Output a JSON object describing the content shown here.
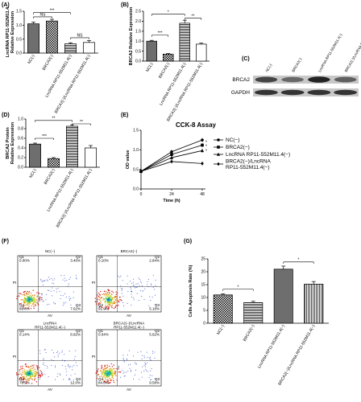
{
  "patterns": {
    "dark": "#7f7f7f",
    "check": "#000000",
    "hstripe": "#000000",
    "gray_light": "#d9d9d9"
  },
  "chart_data": [
    {
      "panel": "(A)",
      "type": "bar",
      "ylabel": "LncRNA RP11-552M11.4\nRelative Expression",
      "ylim": [
        0,
        1.5
      ],
      "yticks": [
        "0.0",
        "0.5",
        "1.0",
        "1.5"
      ],
      "categories": [
        "NC(-)",
        "BRCA2(-)",
        "LncRNA RP11-552M11.4(-)",
        "BRCA2(-)/LncRNA RP11-552M11.4(-)"
      ],
      "values": [
        1.05,
        1.15,
        0.33,
        0.38
      ],
      "errors": [
        0.06,
        0.06,
        0.04,
        0.07
      ],
      "fills": [
        "dark",
        "check",
        "hstripe",
        "white"
      ],
      "significance": [
        {
          "from": 0,
          "to": 1,
          "label": "NS",
          "level": 1.3
        },
        {
          "from": 0,
          "to": 2,
          "label": "***",
          "level": 1.45
        },
        {
          "from": 2,
          "to": 3,
          "label": "NS",
          "level": 0.55
        }
      ]
    },
    {
      "panel": "(B)",
      "type": "bar",
      "ylabel": "BRCA2 Relative Expression",
      "ylim": [
        0,
        2.5
      ],
      "yticks": [
        "0.0",
        "0.5",
        "1.0",
        "1.5",
        "2.0",
        "2.5"
      ],
      "categories": [
        "NC(-)",
        "BRCA2(-)",
        "LncRNA RP11-552M11.4(-)",
        "BRCA2(-)/LncRNA RP11-552M11.4(-)"
      ],
      "values": [
        1.0,
        0.35,
        1.9,
        0.85
      ],
      "errors": [
        0.04,
        0.03,
        0.15,
        0.05
      ],
      "fills": [
        "dark",
        "check",
        "hstripe",
        "white"
      ],
      "significance": [
        {
          "from": 0,
          "to": 1,
          "label": "***",
          "level": 1.3
        },
        {
          "from": 0,
          "to": 2,
          "label": "*",
          "level": 2.35
        },
        {
          "from": 2,
          "to": 3,
          "label": "**",
          "level": 2.15
        }
      ]
    },
    {
      "panel": "(D)",
      "type": "bar",
      "ylabel": "BRCA2 Protein\nRelative Expression",
      "ylim": [
        0,
        1.0
      ],
      "yticks": [
        "0.0",
        "0.2",
        "0.4",
        "0.6",
        "0.8",
        "1.0"
      ],
      "categories": [
        "NC(-)",
        "BRCA2(-)",
        "LncRNA RP11-552M11.4(-)",
        "BRCA2(-)/LncRNA RP11-552M11.4(-)"
      ],
      "values": [
        0.48,
        0.18,
        0.85,
        0.4
      ],
      "errors": [
        0.02,
        0.02,
        0.03,
        0.05
      ],
      "fills": [
        "dark",
        "check",
        "hstripe",
        "white"
      ],
      "significance": [
        {
          "from": 0,
          "to": 1,
          "label": "***",
          "level": 0.6
        },
        {
          "from": 0,
          "to": 2,
          "label": "**",
          "level": 0.97
        },
        {
          "from": 2,
          "to": 3,
          "label": "**",
          "level": 0.9
        }
      ]
    },
    {
      "panel": "(E)",
      "type": "line",
      "title": "CCK-8 Assay",
      "xlabel": "Time  (h)",
      "ylabel": "OD value",
      "x": [
        0,
        24,
        48
      ],
      "xticks": [
        "0",
        "24",
        "48"
      ],
      "ylim": [
        0,
        1.5
      ],
      "yticks": [
        "0.0",
        "0.5",
        "1.0",
        "1.5"
      ],
      "series": [
        {
          "name": "NC(−)",
          "values": [
            0.45,
            0.95,
            1.25
          ],
          "marker": "circle"
        },
        {
          "name": "BRCA2(−)",
          "values": [
            0.45,
            0.88,
            1.12
          ],
          "marker": "square"
        },
        {
          "name": "LncRNA RP11-552M11.4(−)",
          "values": [
            0.45,
            0.8,
            0.98
          ],
          "marker": "triangle"
        },
        {
          "name": "BRCA2(−)/LncRNA\nRP11-552M11.4(−)",
          "values": [
            0.45,
            0.7,
            0.65
          ],
          "marker": "diamond"
        }
      ],
      "annotations": [
        "*",
        "*",
        "*"
      ]
    },
    {
      "panel": "(G)",
      "type": "bar",
      "ylabel": "Cells Apoptosis Rate (%)",
      "ylim": [
        0,
        25
      ],
      "yticks": [
        "0",
        "5",
        "10",
        "15",
        "20",
        "25"
      ],
      "categories": [
        "NC(−)",
        "BRCA2(−)",
        "LncRNA RP11-552M11.4(−)",
        "BRCA2(−)/LncRNA RP11-552M11.4(−)"
      ],
      "values": [
        11.0,
        8.0,
        21.0,
        15.2
      ],
      "errors": [
        0.4,
        0.5,
        1.2,
        1.0
      ],
      "fills": [
        "check",
        "hstripe",
        "dark",
        "vstripe"
      ],
      "significance": [
        {
          "from": 0,
          "to": 1,
          "label": "*",
          "level": 13.2
        },
        {
          "from": 2,
          "to": 3,
          "label": "*",
          "level": 23.8
        }
      ]
    }
  ],
  "blot": {
    "panel": "(C)",
    "columns": [
      "NC(-)",
      "BRCA2(-)",
      "LncRNA RP11-552M11.4(-)",
      "BRCA2(-)/LncRNA RP11-552M11.4(-)"
    ],
    "rows": [
      "BRCA2",
      "GAPDH"
    ]
  },
  "flow": {
    "panel": "(F)",
    "plots": [
      {
        "title": "NC(−)",
        "q1": "Q1\n0.00%",
        "q2": "Q2\n3.40%",
        "q3": "Q3\n7.62%",
        "q4": "Q4\n89.0%"
      },
      {
        "title": "BRCA2(−)",
        "q1": "Q1\n0.10%",
        "q2": "Q2\n2.84%",
        "q3": "Q3\n5.18%",
        "q4": "Q4\n91.9%"
      },
      {
        "title": "LncRNA\nRP11-552M11.4(−)",
        "q1": "Q1\n0.14%",
        "q2": "Q2\n8.92%",
        "q3": "Q3\n12.0%",
        "q4": "Q4\n78.9%"
      },
      {
        "title": "BRCA2(−)/LncRNA\nRP11-552M11.4(−)",
        "q1": "Q1\n0.04%",
        "q2": "Q2\n5.62%",
        "q3": "Q3\n9.58%",
        "q4": "Q4\n84.8%"
      }
    ],
    "xaxis": "AV",
    "yaxis": "PI"
  }
}
